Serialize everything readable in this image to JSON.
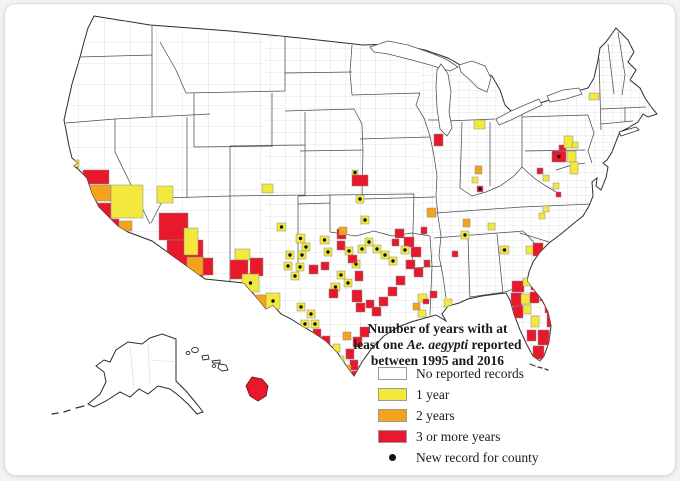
{
  "legend": {
    "title": {
      "line1": "Number of years with at",
      "line2_pre": "least one ",
      "line2_italic": "Ae. aegypti",
      "line2_post": " reported",
      "line3": "between 1995 and 2016"
    },
    "items": [
      {
        "label": "No reported records",
        "type": "swatch",
        "color": "#ffffff"
      },
      {
        "label": "1 year",
        "type": "swatch",
        "color": "#f2e93c"
      },
      {
        "label": "2 years",
        "type": "swatch",
        "color": "#f5a21d"
      },
      {
        "label": "3 or more years",
        "type": "swatch",
        "color": "#e8192d"
      },
      {
        "label": "New record for county",
        "type": "dot",
        "color": "#111111"
      }
    ]
  },
  "map": {
    "description": "US county map of Aedes aegypti reports, with Alaska and Hawaii insets",
    "colors": {
      "y": "#f2e93c",
      "o": "#f5a21d",
      "r": "#e8192d",
      "none": "#ffffff",
      "county_line": "#c9c9c9",
      "state_line": "#4d4d4d",
      "coast_line": "#2b2b2b",
      "dot": "#111111"
    },
    "counties": [
      [
        70,
        160,
        9,
        7,
        "y",
        0
      ],
      [
        72,
        167,
        6,
        5,
        "r",
        0
      ],
      [
        83,
        170,
        26,
        14,
        "r",
        0
      ],
      [
        86,
        185,
        25,
        16,
        "o",
        0
      ],
      [
        98,
        203,
        13,
        17,
        "r",
        0
      ],
      [
        111,
        185,
        32,
        33,
        "y",
        0
      ],
      [
        157,
        186,
        16,
        17,
        "y",
        0
      ],
      [
        104,
        219,
        15,
        11,
        "r",
        0
      ],
      [
        119,
        221,
        13,
        10,
        "o",
        0
      ],
      [
        159,
        213,
        29,
        27,
        "r",
        0
      ],
      [
        167,
        240,
        36,
        38,
        "r",
        0
      ],
      [
        184,
        228,
        14,
        27,
        "y",
        0
      ],
      [
        187,
        257,
        17,
        18,
        "o",
        0
      ],
      [
        203,
        258,
        10,
        17,
        "r",
        0
      ],
      [
        262,
        184,
        11,
        9,
        "y",
        0
      ],
      [
        277,
        223,
        9,
        8,
        "y",
        1
      ],
      [
        235,
        249,
        15,
        11,
        "y",
        0
      ],
      [
        230,
        260,
        18,
        19,
        "r",
        0
      ],
      [
        250,
        258,
        13,
        18,
        "r",
        0
      ],
      [
        242,
        274,
        17,
        18,
        "y",
        1
      ],
      [
        252,
        295,
        14,
        17,
        "o",
        0
      ],
      [
        266,
        293,
        14,
        16,
        "y",
        1
      ],
      [
        296,
        234,
        9,
        9,
        "y",
        1
      ],
      [
        302,
        243,
        8,
        8,
        "y",
        1
      ],
      [
        286,
        251,
        8,
        8,
        "y",
        1
      ],
      [
        298,
        251,
        8,
        8,
        "y",
        1
      ],
      [
        284,
        262,
        8,
        8,
        "y",
        1
      ],
      [
        296,
        263,
        8,
        8,
        "y",
        1
      ],
      [
        291,
        272,
        8,
        8,
        "y",
        1
      ],
      [
        320,
        236,
        9,
        8,
        "y",
        1
      ],
      [
        324,
        248,
        8,
        8,
        "y",
        1
      ],
      [
        337,
        229,
        9,
        10,
        "r",
        0
      ],
      [
        337,
        241,
        8,
        9,
        "r",
        0
      ],
      [
        345,
        247,
        8,
        8,
        "y",
        1
      ],
      [
        352,
        260,
        8,
        8,
        "y",
        1
      ],
      [
        358,
        245,
        8,
        8,
        "y",
        1
      ],
      [
        365,
        238,
        8,
        8,
        "y",
        1
      ],
      [
        373,
        245,
        8,
        8,
        "y",
        1
      ],
      [
        381,
        251,
        8,
        8,
        "y",
        1
      ],
      [
        389,
        257,
        8,
        8,
        "y",
        1
      ],
      [
        309,
        265,
        9,
        9,
        "r",
        0
      ],
      [
        321,
        262,
        8,
        8,
        "r",
        0
      ],
      [
        348,
        255,
        9,
        8,
        "r",
        0
      ],
      [
        355,
        271,
        8,
        10,
        "r",
        0
      ],
      [
        337,
        271,
        8,
        8,
        "y",
        1
      ],
      [
        344,
        279,
        8,
        8,
        "y",
        1
      ],
      [
        331,
        283,
        9,
        8,
        "y",
        1
      ],
      [
        329,
        289,
        9,
        9,
        "r",
        0
      ],
      [
        352,
        290,
        10,
        12,
        "r",
        0
      ],
      [
        356,
        303,
        9,
        9,
        "r",
        0
      ],
      [
        366,
        300,
        8,
        8,
        "r",
        0
      ],
      [
        297,
        303,
        8,
        8,
        "y",
        1
      ],
      [
        307,
        310,
        8,
        8,
        "y",
        1
      ],
      [
        301,
        320,
        8,
        8,
        "y",
        1
      ],
      [
        311,
        320,
        8,
        8,
        "y",
        1
      ],
      [
        395,
        229,
        9,
        9,
        "r",
        0
      ],
      [
        404,
        237,
        10,
        10,
        "r",
        0
      ],
      [
        411,
        247,
        10,
        10,
        "r",
        0
      ],
      [
        406,
        260,
        9,
        9,
        "r",
        0
      ],
      [
        414,
        268,
        9,
        9,
        "r",
        0
      ],
      [
        396,
        276,
        9,
        9,
        "r",
        0
      ],
      [
        388,
        287,
        9,
        9,
        "r",
        0
      ],
      [
        379,
        297,
        9,
        9,
        "r",
        0
      ],
      [
        372,
        307,
        9,
        9,
        "r",
        0
      ],
      [
        322,
        336,
        8,
        8,
        "r",
        0
      ],
      [
        313,
        329,
        8,
        8,
        "r",
        0
      ],
      [
        360,
        327,
        9,
        10,
        "r",
        0
      ],
      [
        353,
        337,
        9,
        10,
        "r",
        0
      ],
      [
        346,
        349,
        8,
        10,
        "r",
        0
      ],
      [
        350,
        360,
        8,
        10,
        "r",
        0
      ],
      [
        343,
        332,
        8,
        8,
        "o",
        0
      ],
      [
        344,
        365,
        7,
        7,
        "o",
        0
      ],
      [
        337,
        356,
        7,
        8,
        "y",
        0
      ],
      [
        333,
        344,
        7,
        8,
        "y",
        0
      ],
      [
        352,
        371,
        8,
        7,
        "r",
        0
      ],
      [
        352,
        170,
        6,
        5,
        "y",
        1
      ],
      [
        352,
        175,
        16,
        11,
        "r",
        0
      ],
      [
        356,
        195,
        8,
        8,
        "y",
        1
      ],
      [
        361,
        216,
        8,
        8,
        "y",
        1
      ],
      [
        339,
        227,
        8,
        8,
        "o",
        0
      ],
      [
        392,
        239,
        7,
        7,
        "r",
        0
      ],
      [
        401,
        246,
        8,
        8,
        "y",
        1
      ],
      [
        474,
        120,
        11,
        9,
        "y",
        0
      ],
      [
        434,
        134,
        9,
        12,
        "r",
        0
      ],
      [
        427,
        208,
        9,
        9,
        "o",
        0
      ],
      [
        421,
        227,
        6,
        7,
        "r",
        0
      ],
      [
        475,
        166,
        7,
        8,
        "o",
        0
      ],
      [
        472,
        177,
        6,
        6,
        "y",
        0
      ],
      [
        477,
        186,
        6,
        6,
        "r",
        1
      ],
      [
        461,
        231,
        8,
        8,
        "y",
        1
      ],
      [
        463,
        219,
        7,
        8,
        "o",
        0
      ],
      [
        488,
        223,
        7,
        7,
        "y",
        0
      ],
      [
        500,
        246,
        9,
        8,
        "y",
        1
      ],
      [
        526,
        246,
        8,
        8,
        "y",
        0
      ],
      [
        533,
        243,
        10,
        13,
        "r",
        0
      ],
      [
        452,
        251,
        6,
        6,
        "r",
        0
      ],
      [
        424,
        260,
        6,
        7,
        "r",
        0
      ],
      [
        430,
        291,
        7,
        7,
        "r",
        0
      ],
      [
        418,
        294,
        9,
        8,
        "y",
        0
      ],
      [
        423,
        299,
        6,
        5,
        "r",
        0
      ],
      [
        413,
        303,
        7,
        7,
        "o",
        0
      ],
      [
        418,
        310,
        8,
        7,
        "y",
        0
      ],
      [
        444,
        299,
        8,
        8,
        "y",
        0
      ],
      [
        512,
        281,
        12,
        11,
        "r",
        0
      ],
      [
        523,
        278,
        8,
        8,
        "y",
        0
      ],
      [
        531,
        281,
        11,
        9,
        "r",
        0
      ],
      [
        511,
        293,
        11,
        13,
        "r",
        0
      ],
      [
        521,
        294,
        9,
        10,
        "y",
        0
      ],
      [
        530,
        292,
        9,
        11,
        "r",
        0
      ],
      [
        540,
        289,
        8,
        12,
        "r",
        0
      ],
      [
        545,
        300,
        8,
        13,
        "r",
        0
      ],
      [
        513,
        306,
        10,
        12,
        "r",
        0
      ],
      [
        523,
        305,
        8,
        9,
        "y",
        0
      ],
      [
        547,
        313,
        8,
        14,
        "r",
        0
      ],
      [
        531,
        316,
        8,
        11,
        "y",
        0
      ],
      [
        538,
        330,
        11,
        15,
        "r",
        0
      ],
      [
        527,
        330,
        9,
        11,
        "r",
        0
      ],
      [
        533,
        346,
        11,
        13,
        "r",
        0
      ],
      [
        552,
        151,
        14,
        11,
        "r",
        1
      ],
      [
        559,
        145,
        7,
        6,
        "r",
        0
      ],
      [
        564,
        136,
        9,
        12,
        "y",
        0
      ],
      [
        567,
        151,
        9,
        11,
        "y",
        0
      ],
      [
        570,
        162,
        8,
        12,
        "y",
        0
      ],
      [
        572,
        142,
        6,
        6,
        "y",
        0
      ],
      [
        589,
        93,
        10,
        7,
        "y",
        0
      ],
      [
        543,
        175,
        6,
        6,
        "y",
        0
      ],
      [
        553,
        183,
        6,
        6,
        "y",
        0
      ],
      [
        556,
        192,
        5,
        5,
        "r",
        0
      ],
      [
        543,
        206,
        6,
        6,
        "y",
        0
      ],
      [
        539,
        213,
        6,
        6,
        "y",
        0
      ],
      [
        537,
        168,
        6,
        6,
        "r",
        0
      ]
    ],
    "hawaii_big_island_category": "r"
  }
}
